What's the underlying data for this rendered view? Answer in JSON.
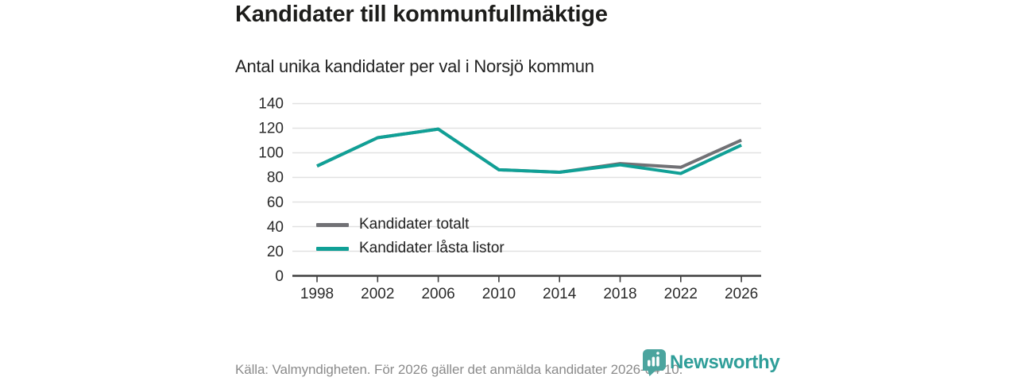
{
  "header": {
    "title": "Kandidater till kommunfullmäktige",
    "subtitle": "Antal unika kandidater per val i Norsjö kommun"
  },
  "footer": {
    "source": "Källa: Valmyndigheten. För 2026 gäller det anmälda kandidater 2026-04-10."
  },
  "logo": {
    "name": "Newsworthy"
  },
  "colors": {
    "series_total_gray": "#717175",
    "series_locked_teal": "#10a096",
    "logo_teal": "#2f9e99",
    "grid": "#e1e1e1",
    "axis": "#3f3f3f",
    "tick_text": "#2b2b2b",
    "title_text": "#1d1d1b",
    "muted_text": "#8b8b8b"
  },
  "chart_data": {
    "type": "line",
    "title": "Kandidater till kommunfullmäktige",
    "subtitle": "Antal unika kandidater per val i Norsjö kommun",
    "categories": [
      "1998",
      "2002",
      "2006",
      "2010",
      "2014",
      "2018",
      "2022",
      "2026"
    ],
    "series": [
      {
        "name": "Kandidater totalt",
        "color": "#717175",
        "values": [
          89,
          112,
          119,
          86,
          84,
          91,
          88,
          110
        ]
      },
      {
        "name": "Kandidater låsta listor",
        "color": "#10a096",
        "values": [
          89,
          112,
          119,
          86,
          84,
          90,
          83,
          106
        ]
      }
    ],
    "xlabel": "",
    "ylabel": "",
    "ylim": [
      0,
      140
    ],
    "ytick_step": 20,
    "grid": "horizontal",
    "legend_position": "inside-bottom-left",
    "source_note": "Källa: Valmyndigheten. För 2026 gäller det anmälda kandidater 2026-04-10."
  }
}
